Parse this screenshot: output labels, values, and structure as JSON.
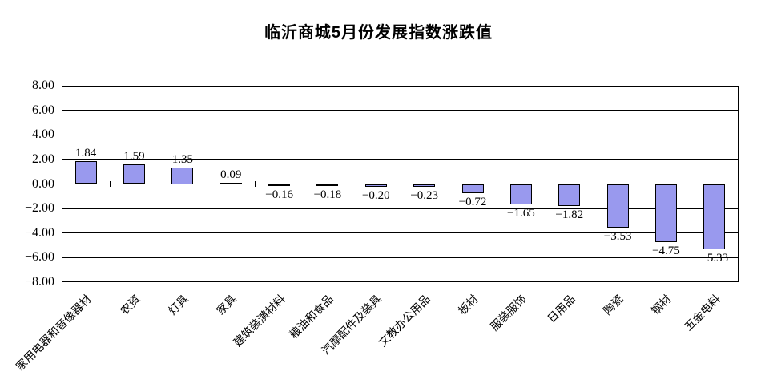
{
  "chart_data": {
    "type": "bar",
    "title": "临沂商城5月份发展指数涨跌值",
    "categories": [
      "家用电器和音像器材",
      "农资",
      "灯具",
      "家具",
      "建筑装潢材料",
      "粮油和食品",
      "汽摩配件及装具",
      "文教办公用品",
      "板材",
      "服装服饰",
      "日用品",
      "陶瓷",
      "钢材",
      "五金电料"
    ],
    "values": [
      1.84,
      1.59,
      1.35,
      0.09,
      -0.16,
      -0.18,
      -0.2,
      -0.23,
      -0.72,
      -1.65,
      -1.82,
      -3.53,
      -4.75,
      -5.33
    ],
    "value_labels": [
      "1.84",
      "1.59",
      "1.35",
      "0.09",
      "−0.16",
      "−0.18",
      "−0.20",
      "−0.23",
      "−0.72",
      "−1.65",
      "−1.82",
      "−3.53",
      "−4.75",
      "−5.33"
    ],
    "xlabel": "",
    "ylabel": "",
    "ylim": [
      -8,
      8
    ],
    "ytick_step": 2,
    "ytick_labels": [
      "8.00",
      "6.00",
      "4.00",
      "2.00",
      "0.00",
      "−2.00",
      "−4.00",
      "−6.00",
      "−8.00"
    ],
    "grid": true,
    "legend": "none",
    "colors": {
      "bar_fill": "#9999EE",
      "bar_border": "#000000",
      "axis": "#000000",
      "text": "#000000",
      "background": "#FFFFFF"
    }
  }
}
